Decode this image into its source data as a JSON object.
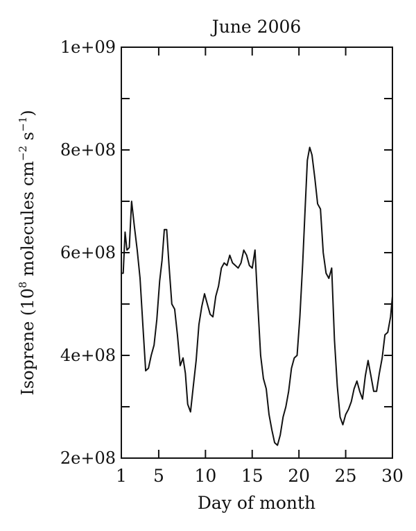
{
  "chart_data": {
    "type": "line",
    "title": "June 2006",
    "xlabel": "Day of month",
    "ylabel_main": "Isoprene (10",
    "ylabel_sup1": "8",
    "ylabel_mid": " molecules cm",
    "ylabel_sup2": "−2",
    "ylabel_mid2": " s",
    "ylabel_sup3": "−1",
    "ylabel_end": ")",
    "xlim": [
      1,
      30
    ],
    "ylim": [
      200000000,
      1000000000
    ],
    "x_ticks": [
      1,
      5,
      10,
      15,
      20,
      25,
      30
    ],
    "x_tick_labels": [
      "1",
      "5",
      "10",
      "15",
      "20",
      "25",
      "30"
    ],
    "y_ticks": [
      200000000,
      400000000,
      600000000,
      800000000,
      1000000000
    ],
    "y_tick_labels": [
      "2e+08",
      "4e+08",
      "6e+08",
      "8e+08",
      "1e+09"
    ],
    "grid": false,
    "series": [
      {
        "color": "#111111",
        "x": [
          1.0,
          1.2,
          1.4,
          1.6,
          1.85,
          2.1,
          2.4,
          2.7,
          3.0,
          3.3,
          3.6,
          3.9,
          4.2,
          4.5,
          4.8,
          5.1,
          5.35,
          5.6,
          5.85,
          6.1,
          6.4,
          6.7,
          7.0,
          7.3,
          7.6,
          7.85,
          8.1,
          8.4,
          8.7,
          9.0,
          9.3,
          9.6,
          9.9,
          10.2,
          10.5,
          10.8,
          11.1,
          11.4,
          11.7,
          12.0,
          12.3,
          12.6,
          12.9,
          13.2,
          13.5,
          13.8,
          14.1,
          14.4,
          14.7,
          15.0,
          15.3,
          15.6,
          15.9,
          16.2,
          16.5,
          16.8,
          17.1,
          17.4,
          17.7,
          18.0,
          18.3,
          18.6,
          18.9,
          19.2,
          19.5,
          19.8,
          20.1,
          20.4,
          20.65,
          20.9,
          21.15,
          21.4,
          21.7,
          22.0,
          22.3,
          22.6,
          22.9,
          23.2,
          23.5,
          23.8,
          24.1,
          24.4,
          24.7,
          25.0,
          25.3,
          25.6,
          25.9,
          26.2,
          26.5,
          26.8,
          27.1,
          27.4,
          27.7,
          28.0,
          28.3,
          28.6,
          28.9,
          29.2,
          29.5,
          29.8,
          30.0
        ],
        "values": [
          560000000,
          560000000,
          640000000,
          605000000,
          610000000,
          700000000,
          650000000,
          605000000,
          550000000,
          460000000,
          370000000,
          375000000,
          400000000,
          420000000,
          470000000,
          545000000,
          585000000,
          645000000,
          645000000,
          575000000,
          500000000,
          490000000,
          440000000,
          380000000,
          395000000,
          365000000,
          305000000,
          290000000,
          340000000,
          390000000,
          460000000,
          495000000,
          520000000,
          500000000,
          480000000,
          475000000,
          515000000,
          535000000,
          570000000,
          580000000,
          575000000,
          595000000,
          580000000,
          575000000,
          570000000,
          580000000,
          605000000,
          595000000,
          575000000,
          570000000,
          605000000,
          500000000,
          400000000,
          355000000,
          335000000,
          285000000,
          255000000,
          230000000,
          225000000,
          245000000,
          280000000,
          300000000,
          330000000,
          375000000,
          395000000,
          400000000,
          475000000,
          580000000,
          680000000,
          780000000,
          805000000,
          790000000,
          745000000,
          695000000,
          685000000,
          600000000,
          560000000,
          550000000,
          570000000,
          430000000,
          340000000,
          280000000,
          265000000,
          285000000,
          295000000,
          310000000,
          335000000,
          350000000,
          330000000,
          315000000,
          360000000,
          390000000,
          360000000,
          330000000,
          330000000,
          365000000,
          395000000,
          440000000,
          445000000,
          475000000,
          515000000
        ]
      }
    ]
  }
}
